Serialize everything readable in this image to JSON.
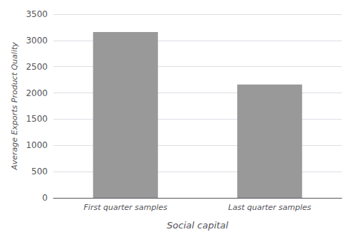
{
  "chart_data": {
    "type": "bar",
    "categories": [
      "First quarter samples",
      "Last quarter samples"
    ],
    "values": [
      3160,
      2160
    ],
    "color": "#999999",
    "xlabel": "Social capital",
    "ylabel": "Average Exports Product Quality",
    "ylim": [
      0,
      3500
    ],
    "yticks": [
      0,
      500,
      1000,
      1500,
      2000,
      2500,
      3000,
      3500
    ],
    "grid": true
  }
}
